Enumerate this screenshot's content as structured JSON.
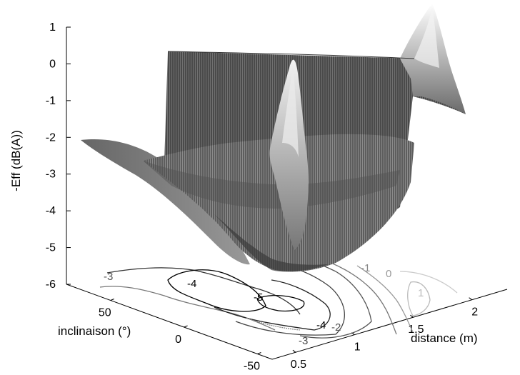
{
  "chart_data": {
    "type": "surface3d",
    "zlabel": "-Eff (dB(A))",
    "xlabel": "inclinaison (°)",
    "ylabel": "distance (m)",
    "z_ticks": [
      "1",
      "0",
      "-1",
      "-2",
      "-3",
      "-4",
      "-5",
      "-6"
    ],
    "x_ticks": [
      "50",
      "0",
      "-50"
    ],
    "y_ticks": [
      "0.5",
      "1",
      "1.5",
      "2"
    ],
    "zlim": [
      -6,
      1
    ],
    "xlim": [
      -60,
      80
    ],
    "ylim": [
      0.3,
      2.3
    ],
    "surface": {
      "description_points": [
        {
          "inclinaison": 80,
          "distance": 0.3,
          "eff": -2.0
        },
        {
          "inclinaison": -60,
          "distance": 0.3,
          "eff": -5.5
        },
        {
          "inclinaison": 80,
          "distance": 2.3,
          "eff": 0.0
        },
        {
          "inclinaison": -60,
          "distance": 2.3,
          "eff": -1.2
        },
        {
          "inclinaison": 0,
          "distance": 0.6,
          "eff": -0.1
        },
        {
          "inclinaison": -60,
          "distance": 2.0,
          "eff": 1.0
        },
        {
          "inclinaison": 0,
          "distance": 1.2,
          "eff": -5.6
        }
      ]
    },
    "contours": [
      {
        "level": -3,
        "label": "-3"
      },
      {
        "level": -4,
        "label": "-4"
      },
      {
        "level": -5,
        "label": "-5"
      },
      {
        "level": -4,
        "label": "-4"
      },
      {
        "level": -3,
        "label": "-3"
      },
      {
        "level": -2,
        "label": "-2"
      },
      {
        "level": -1,
        "label": "-1"
      },
      {
        "level": 0,
        "label": "0"
      },
      {
        "level": 1,
        "label": "1"
      }
    ],
    "colormap": "gray"
  }
}
